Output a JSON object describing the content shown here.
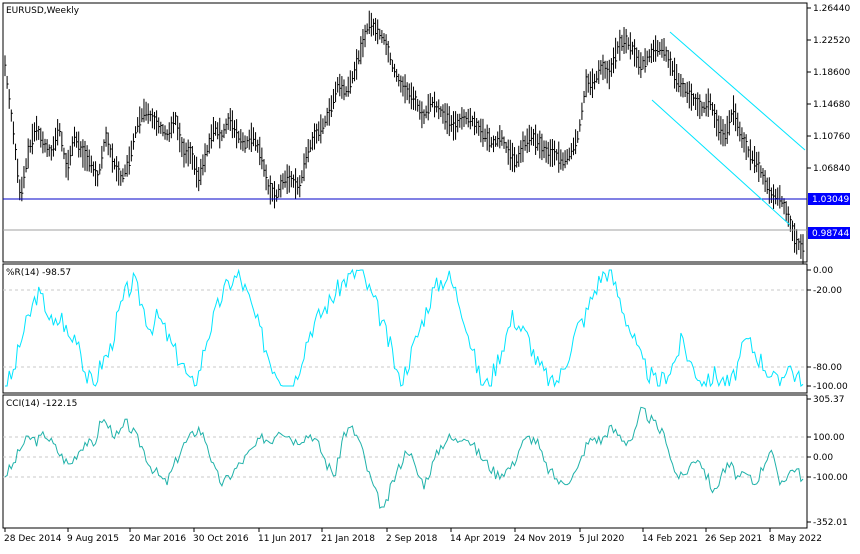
{
  "main_panel": {
    "symbol_label": "EURUSD,Weekly",
    "price_ticks": [
      "1.26440",
      "1.22520",
      "1.18600",
      "1.14680",
      "1.10760",
      "1.06840"
    ],
    "hline_label": "1.03049",
    "last_price_label": "0.98744",
    "colors": {
      "bars": "#000000",
      "hline": "#0000c8",
      "channel": "#00e5ff",
      "label_bg": "#0000ff",
      "label_text": "#ffffff"
    }
  },
  "wpr_panel": {
    "label": "%R(14) -98.57",
    "ticks": [
      "0.00",
      "-20.00",
      "-80.00",
      "-100.00"
    ],
    "color": "#00e5ff"
  },
  "cci_panel": {
    "label": "CCI(14) -122.15",
    "ticks": [
      "305.37",
      "100.00",
      "0.00",
      "-100.00",
      "-352.01"
    ],
    "color": "#20b2aa"
  },
  "date_ticks": [
    "28 Dec 2014",
    "9 Aug 2015",
    "20 Mar 2016",
    "30 Oct 2016",
    "11 Jun 2017",
    "21 Jan 2018",
    "2 Sep 2018",
    "14 Apr 2019",
    "24 Nov 2019",
    "5 Jul 2020",
    "14 Feb 2021",
    "26 Sep 2021",
    "8 May 2022"
  ],
  "chart_data": [
    {
      "type": "line",
      "x_start": "28 Dec 2014",
      "x_end": "8 May 2022",
      "ylim": [
        0.975,
        1.272
      ],
      "hline": 1.03049,
      "last": 0.98744,
      "series": [
        {
          "values": [
            1.2,
            1.13,
            1.05,
            1.1,
            1.13,
            1.11,
            1.1,
            1.13,
            1.08,
            1.12,
            1.1,
            1.09,
            1.07,
            1.12,
            1.09,
            1.07,
            1.09,
            1.13,
            1.15,
            1.14,
            1.13,
            1.12,
            1.14,
            1.1,
            1.1,
            1.07,
            1.1,
            1.13,
            1.12,
            1.14,
            1.12,
            1.11,
            1.12,
            1.1,
            1.06,
            1.05,
            1.07,
            1.07,
            1.06,
            1.1,
            1.12,
            1.13,
            1.15,
            1.18,
            1.17,
            1.19,
            1.22,
            1.25,
            1.24,
            1.23,
            1.2,
            1.18,
            1.17,
            1.16,
            1.14,
            1.16,
            1.15,
            1.14,
            1.13,
            1.14,
            1.14,
            1.13,
            1.12,
            1.11,
            1.12,
            1.1,
            1.09,
            1.11,
            1.12,
            1.11,
            1.1,
            1.1,
            1.09,
            1.1,
            1.12,
            1.18,
            1.18,
            1.2,
            1.19,
            1.22,
            1.23,
            1.22,
            1.2,
            1.21,
            1.22,
            1.22,
            1.2,
            1.18,
            1.17,
            1.16,
            1.15,
            1.16,
            1.13,
            1.12,
            1.15,
            1.12,
            1.1,
            1.09,
            1.07,
            1.05,
            1.05,
            1.03,
            1.0,
            0.99
          ]
        }
      ]
    },
    {
      "type": "line",
      "ylim": [
        -100,
        0
      ],
      "series": [
        {
          "values": [
            -100,
            -90,
            -60,
            -40,
            -20,
            -30,
            -50,
            -40,
            -60,
            -55,
            -90,
            -100,
            -80,
            -70,
            -40,
            -20,
            -10,
            -30,
            -50,
            -40,
            -55,
            -70,
            -80,
            -100,
            -90,
            -60,
            -40,
            -20,
            -10,
            -5,
            -20,
            -40,
            -60,
            -80,
            -90,
            -100,
            -95,
            -70,
            -50,
            -40,
            -30,
            -20,
            -10,
            -5,
            0,
            -15,
            -30,
            -50,
            -70,
            -100,
            -80,
            -60,
            -40,
            -20,
            -10,
            -5,
            -20,
            -40,
            -70,
            -95,
            -100,
            -80,
            -60,
            -40,
            -50,
            -60,
            -80,
            -90,
            -100,
            -90,
            -70,
            -50,
            -40,
            -20,
            -5,
            0,
            -20,
            -40,
            -60,
            -80,
            -90,
            -100,
            -90,
            -80,
            -60,
            -80,
            -90,
            -100,
            -90,
            -95,
            -100,
            -80,
            -60,
            -70,
            -80,
            -90,
            -100,
            -80,
            -90,
            -98.57
          ]
        }
      ]
    },
    {
      "type": "line",
      "ylim": [
        -352.01,
        305.37
      ],
      "series": [
        {
          "values": [
            -100,
            -50,
            50,
            100,
            80,
            120,
            60,
            0,
            -50,
            20,
            80,
            50,
            200,
            150,
            100,
            180,
            120,
            50,
            -50,
            -100,
            -150,
            -50,
            50,
            100,
            150,
            80,
            -80,
            -150,
            -100,
            -50,
            0,
            50,
            100,
            80,
            150,
            120,
            80,
            100,
            120,
            50,
            -50,
            -100,
            120,
            150,
            80,
            -80,
            -200,
            -300,
            -150,
            -50,
            50,
            -80,
            -150,
            -50,
            50,
            100,
            80,
            120,
            60,
            0,
            -50,
            -100,
            -80,
            -50,
            60,
            100,
            80,
            -50,
            -100,
            -150,
            -120,
            -80,
            50,
            100,
            80,
            150,
            120,
            80,
            100,
            250,
            200,
            150,
            100,
            -80,
            -120,
            -50,
            0,
            -100,
            -200,
            -80,
            -50,
            -120,
            -100,
            -150,
            -60,
            50,
            -150,
            -100,
            -60,
            -122.15
          ]
        }
      ]
    }
  ]
}
